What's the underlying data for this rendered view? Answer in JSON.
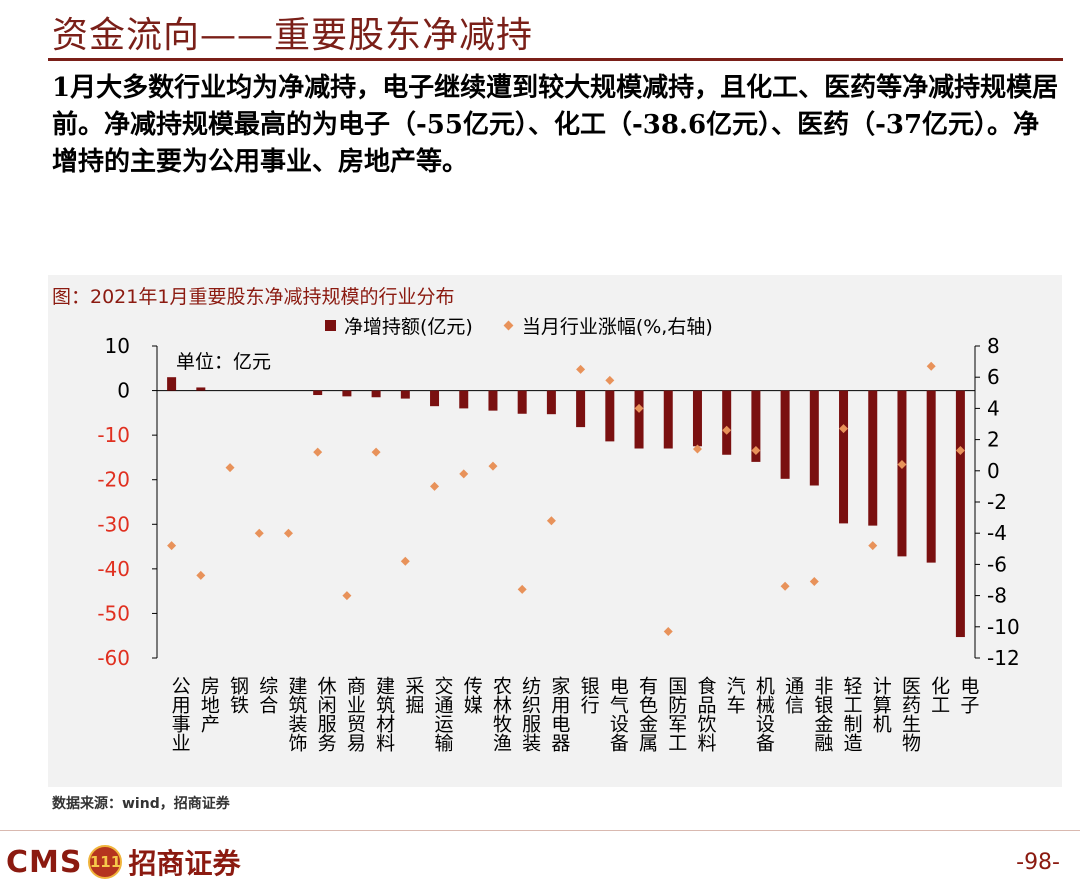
{
  "header": {
    "title": "资金流向——重要股东净减持",
    "description": "1月大多数行业均为净减持，电子继续遭到较大规模减持，且化工、医药等净减持规模居前。净减持规模最高的为电子（-55亿元）、化工（-38.6亿元）、医药（-37亿元）。净增持的主要为公用事业、房地产等。"
  },
  "chart_data": {
    "type": "bar",
    "title": "图：2021年1月重要股东净减持规模的行业分布",
    "unit_label": "单位：亿元",
    "categories": [
      "公用事业",
      "房地产",
      "钢铁",
      "综合",
      "建筑装饰",
      "休闲服务",
      "商业贸易",
      "建筑材料",
      "采掘",
      "交通运输",
      "传媒",
      "农林牧渔",
      "纺织服装",
      "家用电器",
      "银行",
      "电气设备",
      "有色金属",
      "国防军工",
      "食品饮料",
      "汽车",
      "机械设备",
      "通信",
      "非银金融",
      "轻工制造",
      "计算机",
      "医药生物",
      "化工",
      "电子"
    ],
    "series": [
      {
        "name": "净增持额(亿元)",
        "axis": "left",
        "kind": "bar",
        "color": "#7a1010",
        "values": [
          3,
          0.7,
          0,
          0,
          0,
          -1,
          -1.3,
          -1.5,
          -1.8,
          -3.5,
          -4,
          -4.5,
          -5.2,
          -5.3,
          -8.2,
          -11.4,
          -13,
          -13,
          -12.5,
          -14.4,
          -16,
          -19.8,
          -21.3,
          -29.8,
          -30.3,
          -37.2,
          -38.6,
          -55.3
        ]
      },
      {
        "name": "当月行业涨幅(%,右轴)",
        "axis": "right",
        "kind": "scatter",
        "color": "#e8925a",
        "values": [
          -4.8,
          -6.7,
          0.2,
          -4,
          -4,
          1.2,
          -8,
          1.2,
          -5.8,
          -1,
          -0.2,
          0.3,
          -7.6,
          -3.2,
          6.5,
          5.8,
          4,
          -10.3,
          1.4,
          2.6,
          1.3,
          -7.4,
          -7.1,
          2.7,
          -4.8,
          0.4,
          6.7,
          1.3
        ]
      }
    ],
    "ylim_left": [
      -60,
      10
    ],
    "yticks_left": [
      10,
      0,
      -10,
      -20,
      -30,
      -40,
      -50,
      -60
    ],
    "ylim_right": [
      -12,
      8
    ],
    "yticks_right": [
      8,
      6,
      4,
      2,
      0,
      -2,
      -4,
      -6,
      -8,
      -10,
      -12
    ],
    "legend_placement": "top-center"
  },
  "footer": {
    "source": "数据来源：wind，招商证券",
    "logo_text": "CMS",
    "logo_badge": "111",
    "logo_cn": "招商证券",
    "page_number": "-98-"
  },
  "colors": {
    "brand": "#7a1f18",
    "bar": "#7a1010",
    "dot": "#e8925a",
    "negative_tick": "#e03020"
  }
}
